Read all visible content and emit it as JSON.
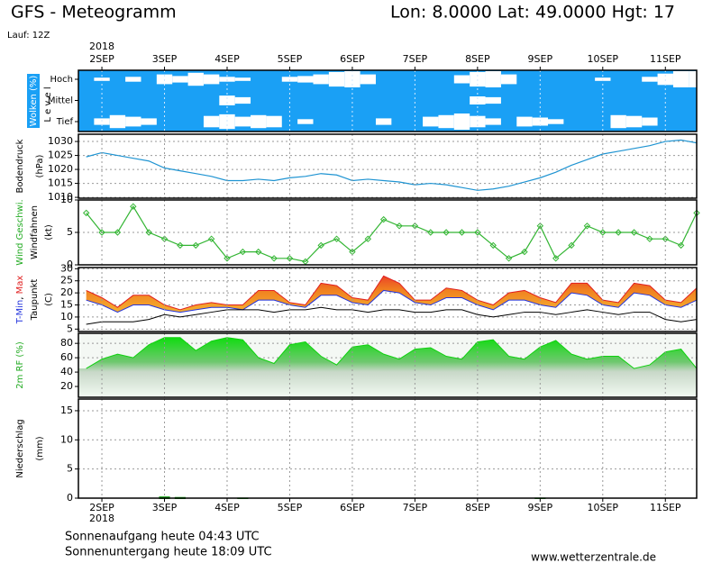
{
  "page": {
    "title": "GFS - Meteogramm",
    "location": "Lon: 8.0000 Lat: 49.0000 Hgt: 17",
    "run": "Lauf: 12Z",
    "sunrise": "Sonnenaufgang heute 04:43 UTC",
    "sunset": "Sonnenuntergang heute 18:09 UTC",
    "source": "www.wetterzentrale.de"
  },
  "chart_data": [
    {
      "type": "cloud-cover",
      "y_label": "Wolken (%)",
      "y_sublabel": "L e v e l",
      "background": "#1aa0f5",
      "color": "#ffffff",
      "year": "2018",
      "grid": true,
      "x": [
        -0.25,
        0,
        0.25,
        0.5,
        0.75,
        1,
        1.25,
        1.5,
        1.75,
        2,
        2.25,
        2.5,
        2.75,
        3,
        3.25,
        3.5,
        3.75,
        4,
        4.25,
        4.5,
        4.75,
        5,
        5.25,
        5.5,
        5.75,
        6,
        6.25,
        6.5,
        6.75,
        7,
        7.25,
        7.5,
        7.75,
        8,
        8.25,
        8.5,
        8.75,
        9,
        9.25,
        9.5
      ],
      "xlim": [
        -0.375,
        9.5
      ],
      "xticks": [
        {
          "value": 0,
          "label": "2SEP"
        },
        {
          "value": 1,
          "label": "3SEP"
        },
        {
          "value": 2,
          "label": "4SEP"
        },
        {
          "value": 3,
          "label": "5SEP"
        },
        {
          "value": 4,
          "label": "6SEP"
        },
        {
          "value": 5,
          "label": "7SEP"
        },
        {
          "value": 6,
          "label": "8SEP"
        },
        {
          "value": 7,
          "label": "9SEP"
        },
        {
          "value": 8,
          "label": "10SEP"
        },
        {
          "value": 9,
          "label": "11SEP"
        }
      ],
      "series": [
        {
          "name": "Hoch",
          "values": [
            0,
            20,
            0,
            30,
            0,
            60,
            40,
            80,
            60,
            30,
            20,
            0,
            0,
            30,
            40,
            60,
            90,
            100,
            60,
            0,
            0,
            0,
            0,
            0,
            50,
            90,
            100,
            60,
            0,
            0,
            0,
            0,
            0,
            20,
            0,
            0,
            30,
            70,
            100,
            100
          ]
        },
        {
          "name": "Mittel",
          "values": [
            0,
            0,
            0,
            0,
            0,
            0,
            0,
            0,
            0,
            60,
            40,
            0,
            0,
            0,
            0,
            0,
            0,
            0,
            0,
            0,
            0,
            0,
            0,
            0,
            0,
            50,
            40,
            0,
            0,
            0,
            0,
            0,
            0,
            0,
            0,
            0,
            0,
            0,
            0,
            0
          ]
        },
        {
          "name": "Tief",
          "values": [
            0,
            40,
            80,
            60,
            40,
            0,
            0,
            0,
            70,
            90,
            60,
            80,
            70,
            0,
            30,
            0,
            0,
            0,
            0,
            40,
            0,
            0,
            60,
            80,
            100,
            70,
            40,
            0,
            60,
            50,
            30,
            0,
            0,
            0,
            80,
            70,
            50,
            0,
            0,
            0
          ]
        }
      ]
    },
    {
      "type": "line",
      "y_label": "Bodendruck",
      "y_unit": "(hPa)",
      "color": "#1f94d2",
      "grid": true,
      "x": [
        -0.25,
        0,
        0.25,
        0.5,
        0.75,
        1,
        1.25,
        1.5,
        1.75,
        2,
        2.25,
        2.5,
        2.75,
        3,
        3.25,
        3.5,
        3.75,
        4,
        4.25,
        4.5,
        4.75,
        5,
        5.25,
        5.5,
        5.75,
        6,
        6.25,
        6.5,
        6.75,
        7,
        7.25,
        7.5,
        7.75,
        8,
        8.25,
        8.5,
        8.75,
        9,
        9.25,
        9.5
      ],
      "values": [
        1024.5,
        1026,
        1025,
        1024,
        1023,
        1020.5,
        1019.5,
        1018.5,
        1017.5,
        1016,
        1016,
        1016.5,
        1016,
        1017,
        1017.5,
        1018.5,
        1018,
        1016,
        1016.5,
        1016,
        1015.5,
        1014.5,
        1015,
        1014.5,
        1013.5,
        1012.5,
        1013,
        1014,
        1015.5,
        1017,
        1019,
        1021.5,
        1023.5,
        1025.5,
        1026.5,
        1027.5,
        1028.5,
        1030,
        1030.5,
        1029.5
      ],
      "xlim": [
        -0.375,
        9.5
      ],
      "xticks": [
        0,
        1,
        2,
        3,
        4,
        5,
        6,
        7,
        8,
        9
      ],
      "ylim": [
        1009.7,
        1032.6
      ],
      "yticks": [
        1010,
        1015,
        1020,
        1025,
        1030
      ]
    },
    {
      "type": "line",
      "y_label": "Wind Geschwi.",
      "y_label_color": "#22aa22",
      "y_sublabel": "Windfahnen",
      "y_unit": "(kt)",
      "color": "#33b533",
      "markers": true,
      "grid": true,
      "x": [
        -0.25,
        0,
        0.25,
        0.5,
        0.75,
        1,
        1.25,
        1.5,
        1.75,
        2,
        2.25,
        2.5,
        2.75,
        3,
        3.25,
        3.5,
        3.75,
        4,
        4.25,
        4.5,
        4.75,
        5,
        5.25,
        5.5,
        5.75,
        6,
        6.25,
        6.5,
        6.75,
        7,
        7.25,
        7.5,
        7.75,
        8,
        8.25,
        8.5,
        8.75,
        9,
        9.25,
        9.5
      ],
      "values": [
        8,
        5,
        5,
        9,
        5,
        4,
        3,
        3,
        4,
        1,
        2,
        2,
        1,
        1,
        0.5,
        3,
        4,
        2,
        4,
        7,
        6,
        6,
        5,
        5,
        5,
        5,
        3,
        1,
        2,
        6,
        1,
        3,
        6,
        5,
        5,
        5,
        4,
        4,
        3,
        8
      ],
      "xlim": [
        -0.375,
        9.5
      ],
      "xticks": [
        0,
        1,
        2,
        3,
        4,
        5,
        6,
        7,
        8,
        9
      ],
      "ylim": [
        0,
        10
      ],
      "yticks": [
        0,
        5,
        10
      ]
    },
    {
      "type": "range",
      "separator": ", ",
      "y_sublabel": "Taupunkt",
      "y_unit": "(C)",
      "grid": true,
      "x": [
        -0.25,
        0,
        0.25,
        0.5,
        0.75,
        1,
        1.25,
        1.5,
        1.75,
        2,
        2.25,
        2.5,
        2.75,
        3,
        3.25,
        3.5,
        3.75,
        4,
        4.25,
        4.5,
        4.75,
        5,
        5.25,
        5.5,
        5.75,
        6,
        6.25,
        6.5,
        6.75,
        7,
        7.25,
        7.5,
        7.75,
        8,
        8.25,
        8.5,
        8.75,
        9,
        9.25,
        9.5
      ],
      "series": [
        {
          "name": "T-Min",
          "color": "#2233dd",
          "values": [
            17,
            15,
            12,
            15,
            15,
            13,
            12,
            13,
            14,
            14,
            13,
            17,
            17,
            15,
            14,
            19,
            19,
            16,
            15,
            21,
            20,
            16,
            15,
            18,
            18,
            15,
            13,
            17,
            17,
            15,
            14,
            20,
            19,
            15,
            14,
            20,
            19,
            15,
            14,
            17
          ]
        },
        {
          "name": "Max",
          "color": "#e02020",
          "values": [
            21,
            18,
            14,
            19,
            19,
            15,
            13,
            15,
            16,
            15,
            15,
            21,
            21,
            16,
            15,
            24,
            23,
            18,
            17,
            27,
            24,
            17,
            17,
            22,
            21,
            17,
            15,
            20,
            21,
            18,
            16,
            24,
            24,
            17,
            16,
            24,
            23,
            17,
            16,
            22
          ]
        },
        {
          "name": "Taupunkt",
          "color": "#000000",
          "values": [
            7,
            8,
            8,
            8,
            9,
            11,
            10,
            11,
            12,
            13,
            13,
            13,
            12,
            13,
            13,
            14,
            13,
            13,
            12,
            13,
            13,
            12,
            12,
            13,
            13,
            11,
            10,
            11,
            12,
            12,
            11,
            12,
            13,
            12,
            11,
            12,
            12,
            9,
            8,
            9
          ]
        }
      ],
      "xlim": [
        -0.375,
        9.5
      ],
      "xticks": [
        0,
        1,
        2,
        3,
        4,
        5,
        6,
        7,
        8,
        9
      ],
      "ylim": [
        4,
        30.5
      ],
      "yticks": [
        5,
        10,
        15,
        20,
        25,
        30
      ]
    },
    {
      "type": "area",
      "y_label": "2m RF (%)",
      "y_label_color": "#22aa22",
      "color": "#10d010",
      "grid": true,
      "x": [
        -0.25,
        0,
        0.25,
        0.5,
        0.75,
        1,
        1.25,
        1.5,
        1.75,
        2,
        2.25,
        2.5,
        2.75,
        3,
        3.25,
        3.5,
        3.75,
        4,
        4.25,
        4.5,
        4.75,
        5,
        5.25,
        5.5,
        5.75,
        6,
        6.25,
        6.5,
        6.75,
        7,
        7.25,
        7.5,
        7.75,
        8,
        8.25,
        8.5,
        8.75,
        9,
        9.25,
        9.5
      ],
      "values": [
        45,
        58,
        65,
        60,
        78,
        88,
        88,
        70,
        83,
        88,
        85,
        60,
        52,
        78,
        82,
        62,
        50,
        75,
        78,
        65,
        58,
        72,
        74,
        62,
        58,
        82,
        85,
        62,
        58,
        75,
        84,
        65,
        58,
        62,
        62,
        45,
        50,
        68,
        72,
        45
      ],
      "xlim": [
        -0.375,
        9.5
      ],
      "xticks": [
        0,
        1,
        2,
        3,
        4,
        5,
        6,
        7,
        8,
        9
      ],
      "ylim": [
        5,
        94
      ],
      "yticks": [
        20,
        40,
        60,
        80
      ]
    },
    {
      "type": "bar",
      "y_label": "Niederschlag",
      "y_unit": "(mm)",
      "color": "#22aa22",
      "year": "2018",
      "grid": true,
      "x": [
        -0.25,
        0,
        0.25,
        0.5,
        0.75,
        1,
        1.25,
        1.5,
        1.75,
        2,
        2.25,
        2.5,
        2.75,
        3,
        3.25,
        3.5,
        3.75,
        4,
        4.25,
        4.5,
        4.75,
        5,
        5.25,
        5.5,
        5.75,
        6,
        6.25,
        6.5,
        6.75,
        7,
        7.25,
        7.5,
        7.75,
        8,
        8.25,
        8.5,
        8.75,
        9,
        9.25,
        9.5
      ],
      "values": [
        0,
        0,
        0,
        0,
        0,
        0.3,
        0.2,
        0,
        0,
        0,
        0.1,
        0,
        0,
        0,
        0,
        0,
        0,
        0,
        0,
        0,
        0,
        0,
        0,
        0,
        0,
        0,
        0,
        0,
        0,
        0.1,
        0,
        0,
        0,
        0,
        0,
        0,
        0,
        0,
        0,
        0
      ],
      "xlim": [
        -0.375,
        9.5
      ],
      "xticks": [
        {
          "value": 0,
          "label": "2SEP"
        },
        {
          "value": 1,
          "label": "3SEP"
        },
        {
          "value": 2,
          "label": "4SEP"
        },
        {
          "value": 3,
          "label": "5SEP"
        },
        {
          "value": 4,
          "label": "6SEP"
        },
        {
          "value": 5,
          "label": "7SEP"
        },
        {
          "value": 6,
          "label": "8SEP"
        },
        {
          "value": 7,
          "label": "9SEP"
        },
        {
          "value": 8,
          "label": "10SEP"
        },
        {
          "value": 9,
          "label": "11SEP"
        }
      ],
      "ylim": [
        0,
        17
      ],
      "yticks": [
        0,
        5,
        10,
        15
      ]
    }
  ]
}
